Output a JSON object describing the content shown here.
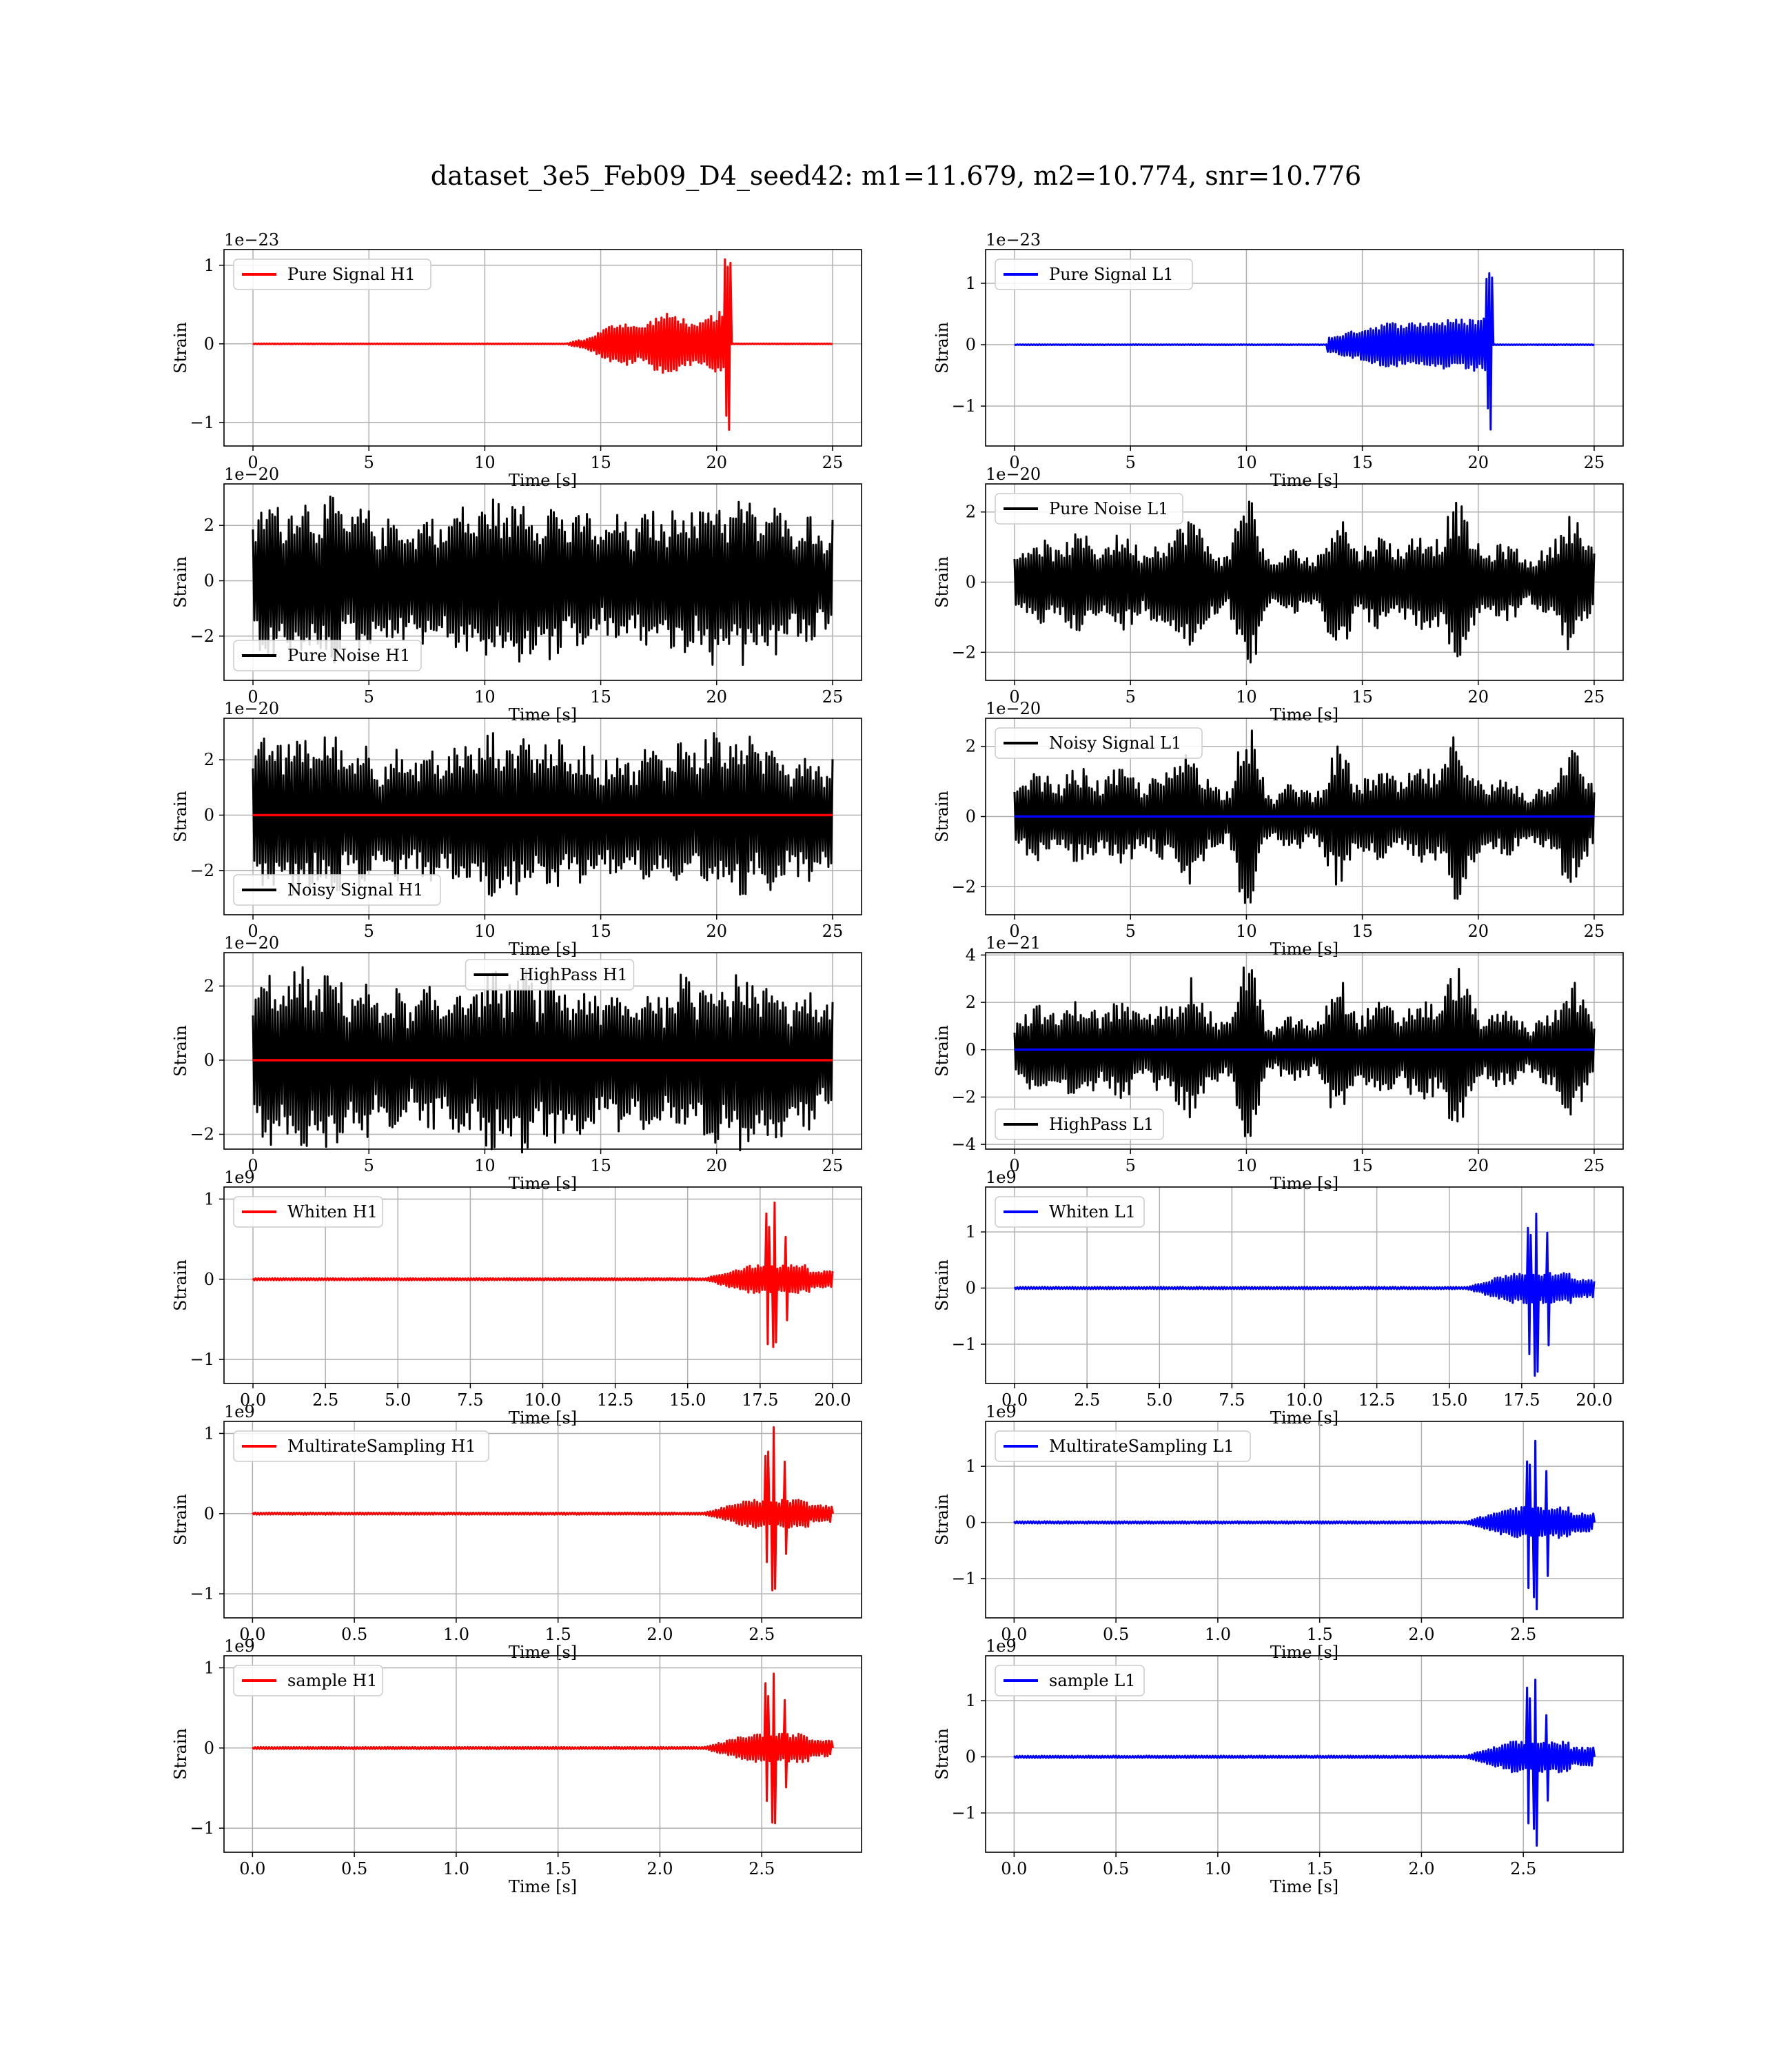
{
  "figure_title": "dataset_3e5_Feb09_D4_seed42: m1=11.679, m2=10.774, snr=10.776",
  "colors": {
    "h1_overlay": "#ff0000",
    "l1_overlay": "#0000ff",
    "noise": "#000000",
    "grid": "#b0b0b0"
  },
  "chart_data": [
    {
      "type": "line",
      "panel": "pure_signal_h1",
      "ylabel": "Strain",
      "xlabel": "Time [s]",
      "offset_text": "1e−23",
      "xlim": [
        -1.25,
        26.25
      ],
      "ylim": [
        -1.3,
        1.2
      ],
      "xticks": [
        0,
        5,
        10,
        15,
        20,
        25
      ],
      "yticks": [
        -1,
        0,
        1
      ],
      "legend": {
        "position": "upper-left"
      },
      "series": [
        {
          "name": "Pure Signal H1",
          "color": "#ff0000",
          "kind": "chirp_h1",
          "t_start": 0,
          "t_end": 25,
          "t_merger": 20.6,
          "amplitude_peak": 1.1
        }
      ]
    },
    {
      "type": "line",
      "panel": "pure_signal_l1",
      "ylabel": "Strain",
      "xlabel": "Time [s]",
      "offset_text": "1e−23",
      "xlim": [
        -1.25,
        26.25
      ],
      "ylim": [
        -1.65,
        1.55
      ],
      "xticks": [
        0,
        5,
        10,
        15,
        20,
        25
      ],
      "yticks": [
        -1,
        0,
        1
      ],
      "legend": {
        "position": "upper-left"
      },
      "series": [
        {
          "name": "Pure Signal L1",
          "color": "#0000ff",
          "kind": "chirp_l1",
          "t_start": 0,
          "t_end": 25,
          "t_merger": 20.6,
          "amplitude_peak": 1.45
        }
      ]
    },
    {
      "type": "line",
      "panel": "pure_noise_h1",
      "ylabel": "Strain",
      "xlabel": "Time [s]",
      "offset_text": "1e−20",
      "xlim": [
        -1.25,
        26.25
      ],
      "ylim": [
        -3.6,
        3.5
      ],
      "xticks": [
        0,
        5,
        10,
        15,
        20,
        25
      ],
      "yticks": [
        -2,
        0,
        2
      ],
      "legend": {
        "position": "lower-left"
      },
      "series": [
        {
          "name": "Pure Noise H1",
          "color": "#000000",
          "kind": "noise_dense",
          "t_start": 0,
          "t_end": 25,
          "amplitude_peak": 3.1
        }
      ]
    },
    {
      "type": "line",
      "panel": "pure_noise_l1",
      "ylabel": "Strain",
      "xlabel": "Time [s]",
      "offset_text": "1e−20",
      "xlim": [
        -1.25,
        26.25
      ],
      "ylim": [
        -2.8,
        2.8
      ],
      "xticks": [
        0,
        5,
        10,
        15,
        20,
        25
      ],
      "yticks": [
        -2,
        0,
        2
      ],
      "legend": {
        "position": "upper-left"
      },
      "series": [
        {
          "name": "Pure Noise L1",
          "color": "#000000",
          "kind": "noise_bursty",
          "t_start": 0,
          "t_end": 25,
          "amplitude_peak": 2.5
        }
      ]
    },
    {
      "type": "line",
      "panel": "noisy_signal_h1",
      "ylabel": "Strain",
      "xlabel": "Time [s]",
      "offset_text": "1e−20",
      "xlim": [
        -1.25,
        26.25
      ],
      "ylim": [
        -3.6,
        3.5
      ],
      "xticks": [
        0,
        5,
        10,
        15,
        20,
        25
      ],
      "yticks": [
        -2,
        0,
        2
      ],
      "legend": {
        "position": "lower-left"
      },
      "series": [
        {
          "name": "Noisy Signal H1",
          "color": "#000000",
          "kind": "noise_dense",
          "t_start": 0,
          "t_end": 25,
          "amplitude_peak": 3.1
        },
        {
          "color": "#ff0000",
          "kind": "flat",
          "t_start": 0,
          "t_end": 25
        }
      ]
    },
    {
      "type": "line",
      "panel": "noisy_signal_l1",
      "ylabel": "Strain",
      "xlabel": "Time [s]",
      "offset_text": "1e−20",
      "xlim": [
        -1.25,
        26.25
      ],
      "ylim": [
        -2.8,
        2.8
      ],
      "xticks": [
        0,
        5,
        10,
        15,
        20,
        25
      ],
      "yticks": [
        -2,
        0,
        2
      ],
      "legend": {
        "position": "upper-left"
      },
      "series": [
        {
          "name": "Noisy Signal L1",
          "color": "#000000",
          "kind": "noise_bursty",
          "t_start": 0,
          "t_end": 25,
          "amplitude_peak": 2.5
        },
        {
          "color": "#0000ff",
          "kind": "flat",
          "t_start": 0,
          "t_end": 25
        }
      ]
    },
    {
      "type": "line",
      "panel": "highpass_h1",
      "ylabel": "Strain",
      "xlabel": "Time [s]",
      "offset_text": "1e−20",
      "xlim": [
        -1.25,
        26.25
      ],
      "ylim": [
        -2.4,
        2.9
      ],
      "xticks": [
        0,
        5,
        10,
        15,
        20,
        25
      ],
      "yticks": [
        -2,
        0,
        2
      ],
      "legend": {
        "position": "upper-center"
      },
      "series": [
        {
          "name": "HighPass H1",
          "color": "#000000",
          "kind": "noise_dense",
          "t_start": 0,
          "t_end": 25,
          "amplitude_peak": 2.5
        },
        {
          "color": "#ff0000",
          "kind": "flat",
          "t_start": 0,
          "t_end": 25
        }
      ]
    },
    {
      "type": "line",
      "panel": "highpass_l1",
      "ylabel": "Strain",
      "xlabel": "Time [s]",
      "offset_text": "1e−21",
      "xlim": [
        -1.25,
        26.25
      ],
      "ylim": [
        -4.2,
        4.1
      ],
      "xticks": [
        0,
        5,
        10,
        15,
        20,
        25
      ],
      "yticks": [
        -4,
        -2,
        0,
        2,
        4
      ],
      "legend": {
        "position": "lower-left"
      },
      "series": [
        {
          "name": "HighPass L1",
          "color": "#000000",
          "kind": "noise_bursty",
          "t_start": 0,
          "t_end": 25,
          "amplitude_peak": 3.8
        },
        {
          "color": "#0000ff",
          "kind": "flat",
          "t_start": 0,
          "t_end": 25
        }
      ]
    },
    {
      "type": "line",
      "panel": "whiten_h1",
      "ylabel": "Strain",
      "xlabel": "Time [s]",
      "offset_text": "1e9",
      "xlim": [
        -1.0,
        21.0
      ],
      "ylim": [
        -1.3,
        1.15
      ],
      "xticks": [
        0.0,
        2.5,
        5.0,
        7.5,
        10.0,
        12.5,
        15.0,
        17.5,
        20.0
      ],
      "yticks": [
        -1,
        0,
        1
      ],
      "legend": {
        "position": "upper-left"
      },
      "series": [
        {
          "name": "Whiten H1",
          "color": "#ff0000",
          "kind": "burst",
          "t_start": 0,
          "t_end": 20,
          "t_peak": 18.0,
          "amplitude_peak": 1.1
        }
      ]
    },
    {
      "type": "line",
      "panel": "whiten_l1",
      "ylabel": "Strain",
      "xlabel": "Time [s]",
      "offset_text": "1e9",
      "xlim": [
        -1.0,
        21.0
      ],
      "ylim": [
        -1.7,
        1.8
      ],
      "xticks": [
        0.0,
        2.5,
        5.0,
        7.5,
        10.0,
        12.5,
        15.0,
        17.5,
        20.0
      ],
      "yticks": [
        -1,
        0,
        1
      ],
      "legend": {
        "position": "upper-left"
      },
      "series": [
        {
          "name": "Whiten L1",
          "color": "#0000ff",
          "kind": "burst",
          "t_start": 0,
          "t_end": 20,
          "t_peak": 18.0,
          "amplitude_peak": 1.7
        }
      ]
    },
    {
      "type": "line",
      "panel": "multirate_h1",
      "ylabel": "Strain",
      "xlabel": "Time [s]",
      "offset_text": "1e9",
      "xlim": [
        -0.14,
        2.99
      ],
      "ylim": [
        -1.3,
        1.15
      ],
      "xticks": [
        0.0,
        0.5,
        1.0,
        1.5,
        2.0,
        2.5
      ],
      "yticks": [
        -1,
        0,
        1
      ],
      "legend": {
        "position": "upper-left"
      },
      "series": [
        {
          "name": "MultirateSampling H1",
          "color": "#ff0000",
          "kind": "burst_short",
          "t_start": 0,
          "t_end": 2.85,
          "t_peak": 2.56,
          "amplitude_peak": 1.1
        }
      ]
    },
    {
      "type": "line",
      "panel": "multirate_l1",
      "ylabel": "Strain",
      "xlabel": "Time [s]",
      "offset_text": "1e9",
      "xlim": [
        -0.14,
        2.99
      ],
      "ylim": [
        -1.7,
        1.8
      ],
      "xticks": [
        0.0,
        0.5,
        1.0,
        1.5,
        2.0,
        2.5
      ],
      "yticks": [
        -1,
        0,
        1
      ],
      "legend": {
        "position": "upper-left"
      },
      "series": [
        {
          "name": "MultirateSampling L1",
          "color": "#0000ff",
          "kind": "burst_short",
          "t_start": 0,
          "t_end": 2.85,
          "t_peak": 2.56,
          "amplitude_peak": 1.7
        }
      ]
    },
    {
      "type": "line",
      "panel": "sample_h1",
      "ylabel": "Strain",
      "xlabel": "Time [s]",
      "offset_text": "1e9",
      "xlim": [
        -0.14,
        2.99
      ],
      "ylim": [
        -1.3,
        1.15
      ],
      "xticks": [
        0.0,
        0.5,
        1.0,
        1.5,
        2.0,
        2.5
      ],
      "yticks": [
        -1,
        0,
        1
      ],
      "legend": {
        "position": "upper-left"
      },
      "series": [
        {
          "name": "sample H1",
          "color": "#ff0000",
          "kind": "burst_short",
          "t_start": 0,
          "t_end": 2.85,
          "t_peak": 2.56,
          "amplitude_peak": 1.1
        }
      ]
    },
    {
      "type": "line",
      "panel": "sample_l1",
      "ylabel": "Strain",
      "xlabel": "Time [s]",
      "offset_text": "1e9",
      "xlim": [
        -0.14,
        2.99
      ],
      "ylim": [
        -1.7,
        1.8
      ],
      "xticks": [
        0.0,
        0.5,
        1.0,
        1.5,
        2.0,
        2.5
      ],
      "yticks": [
        -1,
        0,
        1
      ],
      "legend": {
        "position": "upper-left"
      },
      "series": [
        {
          "name": "sample L1",
          "color": "#0000ff",
          "kind": "burst_short",
          "t_start": 0,
          "t_end": 2.85,
          "t_peak": 2.56,
          "amplitude_peak": 1.7
        }
      ]
    }
  ]
}
